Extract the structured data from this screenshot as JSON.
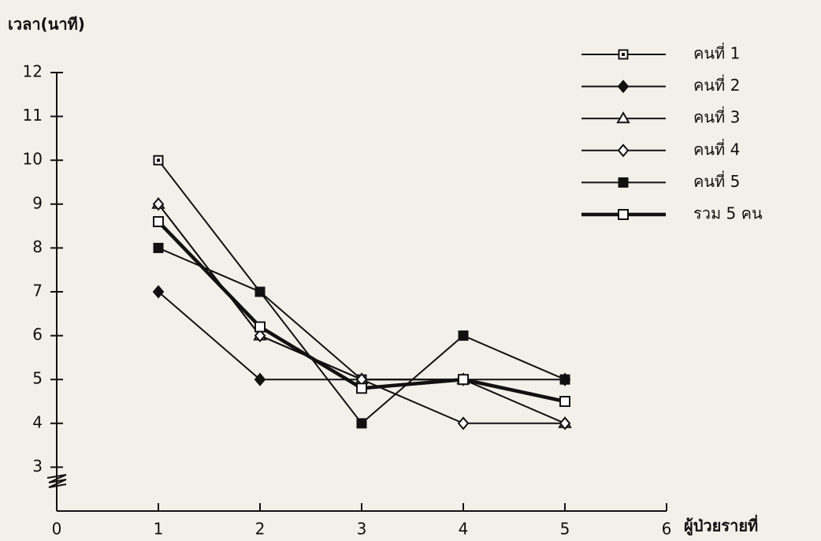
{
  "chart_data": {
    "type": "line",
    "y_label": "เวลา(นาที)",
    "x_label": "ผู้ป่วยรายที่",
    "xlim": [
      0,
      6
    ],
    "xticks": [
      0,
      1,
      2,
      3,
      4,
      5,
      6
    ],
    "ylim": [
      2,
      12
    ],
    "yticks": [
      3,
      4,
      5,
      6,
      7,
      8,
      9,
      10,
      11,
      12
    ],
    "x": [
      1,
      2,
      3,
      4,
      5
    ],
    "series": [
      {
        "name": "คนที่ 1",
        "color": "#111111",
        "marker": "square-dot",
        "width": 2,
        "values": [
          10,
          7,
          5,
          5,
          4.5
        ]
      },
      {
        "name": "คนที่ 2",
        "color": "#111111",
        "marker": "diamond",
        "width": 2,
        "values": [
          7,
          5,
          5,
          5,
          5
        ]
      },
      {
        "name": "คนที่ 3",
        "color": "#111111",
        "marker": "triangle",
        "width": 2,
        "values": [
          9,
          6,
          5,
          5,
          4
        ]
      },
      {
        "name": "คนที่ 4",
        "color": "#111111",
        "marker": "diamond-open",
        "width": 2,
        "values": [
          9,
          6,
          5,
          4,
          4
        ]
      },
      {
        "name": "คนที่ 5",
        "color": "#111111",
        "marker": "square",
        "width": 2,
        "values": [
          8,
          7,
          4,
          6,
          5
        ]
      },
      {
        "name": "รวม 5 คน",
        "color": "#111111",
        "marker": "square-open",
        "width": 4.5,
        "values": [
          8.6,
          6.2,
          4.8,
          5,
          4.5
        ]
      }
    ]
  }
}
